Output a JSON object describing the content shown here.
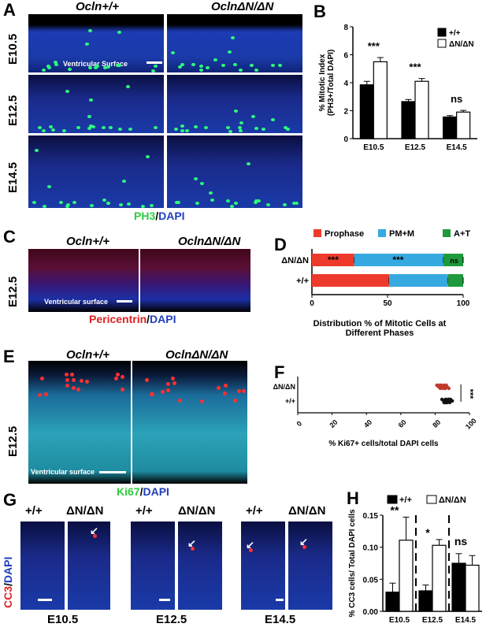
{
  "panels": {
    "A": {
      "letter": "A",
      "genotypes": [
        "Ocln+/+",
        "OclnΔN/ΔN"
      ],
      "ages": [
        "E10.5",
        "E12.5",
        "E14.5"
      ],
      "surface_label": "Ventricular Surface",
      "stain_main": "PH3",
      "stain_sep": "/",
      "stain_dapi": "DAPI",
      "colors": {
        "stain": "#2ecc40",
        "dapi": "#1f3fbf"
      }
    },
    "C": {
      "letter": "C",
      "genotypes": [
        "Ocln+/+",
        "OclnΔN/ΔN"
      ],
      "age": "E12.5",
      "surface_label": "Ventricular surface",
      "stain_main": "Pericentrin",
      "stain_sep": "/",
      "stain_dapi": "DAPI",
      "colors": {
        "stain": "#e02020",
        "dapi": "#1f3fbf"
      }
    },
    "E": {
      "letter": "E",
      "genotypes": [
        "Ocln+/+",
        "OclnΔN/ΔN"
      ],
      "age": "E12.5",
      "surface_label": "Ventricular surface",
      "stain_main": "Ki67",
      "stain_sep": "/",
      "stain_dapi": "DAPI",
      "colors": {
        "stain": "#2ecc40",
        "dapi": "#1f3fbf"
      }
    },
    "G": {
      "letter": "G",
      "column_labels": [
        "+/+",
        "ΔN/ΔN",
        "+/+",
        "ΔN/ΔN",
        "+/+",
        "ΔN/ΔN"
      ],
      "ages": [
        "E10.5",
        "E12.5",
        "E14.5"
      ],
      "stain_main": "CC3",
      "stain_sep": "/",
      "stain_dapi": "DAPI",
      "colors": {
        "stain": "#e02020",
        "dapi": "#1f3fbf"
      }
    }
  },
  "chart_data": [
    {
      "panel": "B",
      "type": "bar",
      "ylabel": "% Mitotic Index\n(PH3+/Total DAPI)",
      "categories": [
        "E10.5",
        "E12.5",
        "E14.5"
      ],
      "ylim": [
        0,
        8
      ],
      "yticks": [
        0,
        2,
        4,
        6,
        8
      ],
      "series": [
        {
          "name": "+/+",
          "color": "#000000",
          "values": [
            3.85,
            2.65,
            1.55
          ],
          "errors": [
            0.25,
            0.15,
            0.1
          ]
        },
        {
          "name": "ΔN/ΔN",
          "color": "#ffffff",
          "values": [
            5.5,
            4.1,
            1.9
          ],
          "errors": [
            0.3,
            0.2,
            0.12
          ]
        }
      ],
      "significance": [
        "***",
        "***",
        "ns"
      ],
      "legend": "top-right"
    },
    {
      "panel": "D",
      "type": "bar",
      "orientation": "horizontal-stacked",
      "xlabel": "Distribution % of Mitotic Cells at\nDifferent Phases",
      "categories": [
        "ΔN/ΔN",
        "+/+"
      ],
      "xlim": [
        0,
        100
      ],
      "xticks": [
        0,
        50,
        100
      ],
      "series": [
        {
          "name": "Prophase",
          "color": "#ee3a2c",
          "values": [
            28,
            51
          ]
        },
        {
          "name": "PM+M",
          "color": "#36a9e1",
          "values": [
            59,
            39
          ]
        },
        {
          "name": "A+T",
          "color": "#1e9a3c",
          "values": [
            13,
            10
          ]
        }
      ],
      "significance": [
        "***",
        "***",
        "ns"
      ],
      "legend": "top"
    },
    {
      "panel": "F",
      "type": "scatter",
      "xlabel": "% Ki67+ cells/total DAPI cells",
      "categories": [
        "ΔN/ΔN",
        "+/+"
      ],
      "xlim": [
        0,
        100
      ],
      "xticks": [
        0,
        20,
        40,
        60,
        80,
        100
      ],
      "series": [
        {
          "name": "ΔN/ΔN",
          "color": "#c0392b",
          "values": [
            81,
            82,
            83,
            83.5,
            84,
            84.5,
            85,
            85.5,
            86,
            86.5,
            87,
            88,
            82.5,
            84.2,
            85.8
          ]
        },
        {
          "name": "+/+",
          "color": "#111111",
          "values": [
            84,
            85,
            85.5,
            86,
            86.5,
            87,
            87.5,
            88,
            88.5,
            89,
            90,
            86.2,
            87.8,
            89.5,
            85.2
          ]
        }
      ],
      "significance": [
        "***"
      ]
    },
    {
      "panel": "H",
      "type": "bar",
      "ylabel": "% CC3 cells/ Total DAPI cells",
      "categories": [
        "E10.5",
        "E12.5",
        "E14.5"
      ],
      "ylim": [
        0,
        0.15
      ],
      "yticks": [
        0.0,
        0.05,
        0.1,
        0.15
      ],
      "ytick_labels": [
        "0.00",
        "0.05",
        "0.10",
        "0.15"
      ],
      "series": [
        {
          "name": "+/+",
          "color": "#000000",
          "values": [
            0.03,
            0.032,
            0.075
          ],
          "errors": [
            0.014,
            0.009,
            0.015
          ]
        },
        {
          "name": "ΔN/ΔN",
          "color": "#ffffff",
          "values": [
            0.111,
            0.103,
            0.072
          ],
          "errors": [
            0.036,
            0.009,
            0.015
          ]
        }
      ],
      "significance": [
        "**",
        "*",
        "ns"
      ],
      "legend": "top"
    }
  ]
}
